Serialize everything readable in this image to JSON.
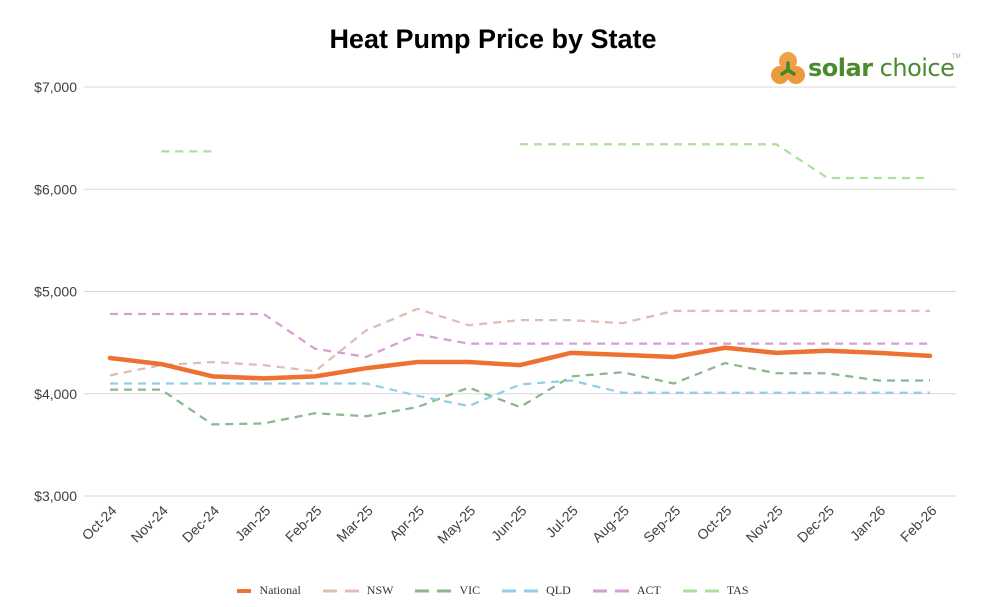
{
  "chart_data": {
    "type": "line",
    "title": "Heat Pump Price by State",
    "xlabel": "",
    "ylabel": "",
    "ylim": [
      3000,
      7000
    ],
    "yticks": [
      3000,
      4000,
      5000,
      6000,
      7000
    ],
    "ytick_labels": [
      "$3,000",
      "$4,000",
      "$5,000",
      "$6,000",
      "$7,000"
    ],
    "grid": true,
    "legend_position": "bottom",
    "categories": [
      "Oct-24",
      "Nov-24",
      "Dec-24",
      "Jan-25",
      "Feb-25",
      "Mar-25",
      "Apr-25",
      "May-25",
      "Jun-25",
      "Jul-25",
      "Aug-25",
      "Sep-25",
      "Oct-25",
      "Nov-25",
      "Dec-25",
      "Jan-26",
      "Feb-26"
    ],
    "series": [
      {
        "name": "National",
        "color": "#ed7131",
        "dashed": false,
        "values": [
          4350,
          4290,
          4170,
          4150,
          4170,
          4250,
          4310,
          4310,
          4280,
          4400,
          4380,
          4360,
          4450,
          4400,
          4420,
          4400,
          4370
        ]
      },
      {
        "name": "NSW",
        "color": "#dfbdb3",
        "dashed": true,
        "values": [
          4180,
          4280,
          4310,
          4280,
          4220,
          4620,
          4830,
          4670,
          4720,
          4720,
          4690,
          4810,
          4810,
          4810,
          4810,
          4810,
          4810
        ]
      },
      {
        "name": "VIC",
        "color": "#8cb68e",
        "dashed": true,
        "values": [
          4040,
          4040,
          3700,
          3710,
          3810,
          3780,
          3870,
          4060,
          3870,
          4170,
          4210,
          4100,
          4300,
          4200,
          4200,
          4130,
          4130
        ]
      },
      {
        "name": "QLD",
        "color": "#8fcfe9",
        "dashed": true,
        "values": [
          4100,
          4100,
          4100,
          4100,
          4100,
          4100,
          3980,
          3880,
          4090,
          4130,
          4010,
          4010,
          4010,
          4010,
          4010,
          4010,
          4010
        ]
      },
      {
        "name": "ACT",
        "color": "#d69fd3",
        "dashed": true,
        "values": [
          4780,
          4780,
          4780,
          4780,
          4440,
          4360,
          4580,
          4490,
          4490,
          4490,
          4490,
          4490,
          4490,
          4490,
          4490,
          4490,
          4490
        ]
      },
      {
        "name": "TAS",
        "color": "#addf9c",
        "dashed": true,
        "values": [
          null,
          6370,
          6370,
          null,
          null,
          null,
          null,
          null,
          6440,
          6440,
          6440,
          6440,
          6440,
          6440,
          6110,
          6110,
          6110
        ]
      }
    ]
  },
  "logo": {
    "text_bold": "solar",
    "text_regular": " choice",
    "trademark": "TM"
  }
}
